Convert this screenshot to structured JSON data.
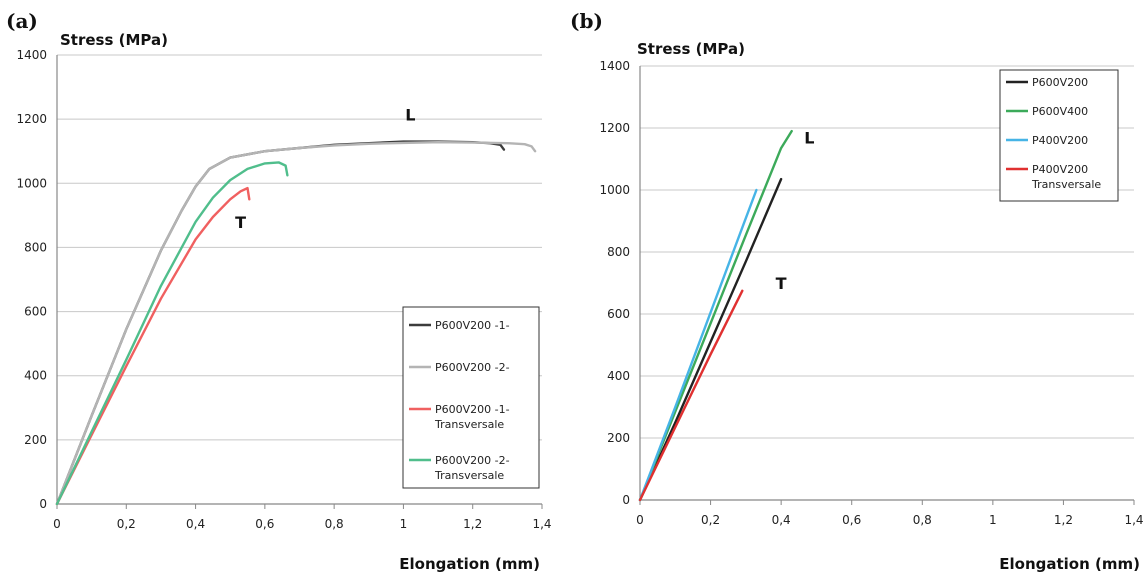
{
  "chart_data": [
    {
      "type": "line",
      "panel_label": "(a)",
      "ylabel": "Stress (MPa)",
      "xlabel": "Elongation (mm)",
      "xlim": [
        0,
        1.4
      ],
      "ylim": [
        0,
        1400
      ],
      "x_ticks": [
        0,
        0.2,
        0.4,
        0.6,
        0.8,
        1,
        1.2,
        1.4
      ],
      "x_tick_labels": [
        "0",
        "0,2",
        "0,4",
        "0,6",
        "0,8",
        "1",
        "1,2",
        "1,4"
      ],
      "y_ticks": [
        0,
        200,
        400,
        600,
        800,
        1000,
        1200,
        1400
      ],
      "y_tick_labels": [
        "0",
        "200",
        "400",
        "600",
        "800",
        "1000",
        "1200",
        "1400"
      ],
      "grid": "horizontal",
      "legend_position": "bottom-right",
      "annotations": [
        {
          "text": "L",
          "x": 1.02,
          "y": 1195
        },
        {
          "text": "T",
          "x": 0.53,
          "y": 860
        }
      ],
      "series": [
        {
          "name": "P600V200 -1-",
          "color": "#3c3c3c",
          "x": [
            0,
            0.1,
            0.2,
            0.3,
            0.36,
            0.4,
            0.44,
            0.5,
            0.6,
            0.7,
            0.8,
            0.9,
            1.0,
            1.1,
            1.2,
            1.25,
            1.28,
            1.29
          ],
          "y": [
            0,
            275,
            545,
            790,
            915,
            990,
            1045,
            1080,
            1100,
            1110,
            1120,
            1125,
            1130,
            1130,
            1128,
            1125,
            1120,
            1105
          ]
        },
        {
          "name": "P600V200 -2-",
          "color": "#b4b4b4",
          "x": [
            0,
            0.1,
            0.2,
            0.3,
            0.36,
            0.4,
            0.44,
            0.5,
            0.6,
            0.7,
            0.8,
            0.9,
            1.0,
            1.1,
            1.2,
            1.3,
            1.35,
            1.37,
            1.38
          ],
          "y": [
            0,
            275,
            545,
            790,
            915,
            990,
            1045,
            1080,
            1100,
            1110,
            1118,
            1123,
            1126,
            1128,
            1127,
            1125,
            1122,
            1115,
            1100
          ]
        },
        {
          "name": "P600V200 -1- Transversale",
          "color": "#f06060",
          "x": [
            0,
            0.1,
            0.2,
            0.3,
            0.4,
            0.45,
            0.5,
            0.53,
            0.55,
            0.555
          ],
          "y": [
            0,
            215,
            430,
            640,
            825,
            895,
            950,
            975,
            985,
            950
          ]
        },
        {
          "name": "P600V200 -2- Transversale",
          "color": "#50be8c",
          "x": [
            0,
            0.1,
            0.2,
            0.3,
            0.4,
            0.45,
            0.5,
            0.55,
            0.6,
            0.64,
            0.66,
            0.665
          ],
          "y": [
            0,
            225,
            450,
            680,
            880,
            955,
            1010,
            1045,
            1062,
            1065,
            1055,
            1025
          ]
        }
      ]
    },
    {
      "type": "line",
      "panel_label": "(b)",
      "ylabel": "Stress (MPa)",
      "xlabel": "Elongation (mm)",
      "xlim": [
        0,
        1.4
      ],
      "ylim": [
        0,
        1400
      ],
      "x_ticks": [
        0,
        0.2,
        0.4,
        0.6,
        0.8,
        1,
        1.2,
        1.4
      ],
      "x_tick_labels": [
        "0",
        "0,2",
        "0,4",
        "0,6",
        "0,8",
        "1",
        "1,2",
        "1,4"
      ],
      "y_ticks": [
        0,
        200,
        400,
        600,
        800,
        1000,
        1200,
        1400
      ],
      "y_tick_labels": [
        "0",
        "200",
        "400",
        "600",
        "800",
        "1000",
        "1200",
        "1400"
      ],
      "grid": "horizontal",
      "legend_position": "top-right",
      "annotations": [
        {
          "text": "L",
          "x": 0.48,
          "y": 1150
        },
        {
          "text": "T",
          "x": 0.4,
          "y": 680
        }
      ],
      "series": [
        {
          "name": "P600V200",
          "color": "#222222",
          "x": [
            0,
            0.1,
            0.2,
            0.3,
            0.4
          ],
          "y": [
            0,
            250,
            510,
            770,
            1035
          ]
        },
        {
          "name": "P600V400",
          "color": "#3caa5a",
          "x": [
            0,
            0.1,
            0.2,
            0.3,
            0.4,
            0.43
          ],
          "y": [
            0,
            285,
            570,
            855,
            1135,
            1190
          ]
        },
        {
          "name": "P400V200",
          "color": "#46b4e6",
          "x": [
            0,
            0.1,
            0.2,
            0.3,
            0.33
          ],
          "y": [
            0,
            300,
            605,
            910,
            1000
          ]
        },
        {
          "name": "P400V200 Transversale",
          "color": "#e03030",
          "x": [
            0,
            0.1,
            0.2,
            0.29
          ],
          "y": [
            0,
            235,
            470,
            675
          ]
        }
      ]
    }
  ]
}
